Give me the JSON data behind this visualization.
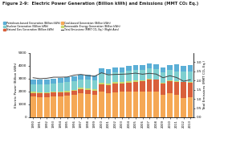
{
  "title": "Figure 2-9:  Electric Power Generation (Billion kWh) and Emissions (MMT CO₂ Eq.)",
  "years": [
    1990,
    1991,
    1992,
    1993,
    1994,
    1995,
    1996,
    1997,
    1998,
    1999,
    2000,
    2001,
    2002,
    2003,
    2004,
    2005,
    2006,
    2007,
    2008,
    2009,
    2010,
    2011,
    2012,
    2013
  ],
  "coal": [
    1594,
    1551,
    1576,
    1639,
    1635,
    1652,
    1737,
    1845,
    1807,
    1767,
    1966,
    1864,
    1933,
    1974,
    1978,
    2013,
    1990,
    2016,
    1985,
    1755,
    1847,
    1733,
    1514,
    1586
  ],
  "natural_gas": [
    264,
    296,
    264,
    270,
    291,
    307,
    319,
    351,
    309,
    296,
    601,
    639,
    691,
    649,
    710,
    760,
    816,
    896,
    920,
    879,
    987,
    1013,
    1225,
    1124
  ],
  "petroleum": [
    126,
    111,
    90,
    104,
    91,
    88,
    76,
    88,
    116,
    94,
    111,
    124,
    96,
    119,
    120,
    122,
    64,
    65,
    46,
    36,
    37,
    30,
    23,
    30
  ],
  "nuclear": [
    577,
    613,
    619,
    610,
    641,
    673,
    675,
    629,
    673,
    728,
    754,
    769,
    780,
    764,
    788,
    782,
    787,
    807,
    806,
    799,
    807,
    790,
    769,
    789
  ],
  "renewable": [
    355,
    348,
    375,
    385,
    370,
    375,
    392,
    380,
    382,
    370,
    356,
    327,
    354,
    378,
    374,
    369,
    388,
    380,
    374,
    374,
    408,
    522,
    482,
    519
  ],
  "emissions_line": [
    2.15,
    2.1,
    2.12,
    2.18,
    2.18,
    2.19,
    2.29,
    2.33,
    2.27,
    2.23,
    2.42,
    2.31,
    2.33,
    2.34,
    2.36,
    2.4,
    2.34,
    2.39,
    2.35,
    2.15,
    2.26,
    2.16,
    1.96,
    2.04
  ],
  "colors": {
    "coal": "#f5a855",
    "natural_gas": "#d95f3b",
    "petroleum": "#c8d96f",
    "nuclear": "#7ecfcf",
    "renewable": "#5bafd6"
  },
  "line_color": "#444444",
  "ylabel_left": "Electric Power (Billion kWh)",
  "ylabel_right": "Total Emissions (MMT CO₂ Eq.)",
  "legend_labels": [
    "Petroleum-based Generation (Billion kWh)",
    "Natural Gas Generation (Billion kWh)",
    "Renewable Energy Generation (Billion kWh)",
    "Nuclear Generation (Billion kWh)",
    "Coal-based Generation (Billion kWh)",
    "Total Emissions (MMT CO₂ Eq.) (Right Axis)"
  ],
  "ylim_left": [
    0,
    5000
  ],
  "ylim_right": [
    0,
    3.5
  ],
  "yticks_left": [
    0,
    1000,
    2000,
    3000,
    4000,
    5000
  ],
  "yticks_right": [
    0.0,
    0.5,
    1.0,
    1.5,
    2.0,
    2.5,
    3.0
  ],
  "background_color": "#ffffff",
  "figsize": [
    2.84,
    1.78
  ],
  "dpi": 100
}
